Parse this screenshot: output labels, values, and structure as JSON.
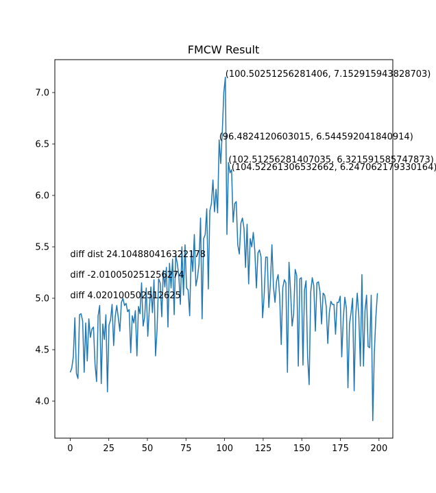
{
  "chart_data": {
    "type": "line",
    "title": "FMCW Result",
    "xlabel": "",
    "ylabel": "",
    "xlim": [
      -9.95,
      208.96
    ],
    "ylim": [
      3.64,
      7.32
    ],
    "grid": false,
    "series": [
      {
        "color": "#1f77b4",
        "x_start": 0,
        "x_step": 1.00502512562814,
        "y": [
          4.28,
          4.32,
          4.43,
          4.81,
          4.27,
          4.22,
          4.84,
          4.85,
          4.78,
          4.28,
          4.76,
          4.39,
          4.8,
          4.62,
          4.7,
          4.72,
          4.36,
          4.19,
          4.83,
          4.93,
          4.17,
          4.75,
          4.6,
          4.84,
          4.09,
          4.74,
          4.79,
          4.94,
          4.54,
          4.82,
          4.93,
          4.81,
          4.68,
          4.96,
          5.0,
          4.93,
          4.95,
          4.87,
          4.89,
          4.47,
          4.83,
          4.76,
          4.88,
          4.44,
          4.92,
          4.85,
          5.15,
          4.73,
          4.82,
          5.1,
          4.63,
          4.9,
          5.11,
          4.86,
          5.18,
          4.44,
          4.7,
          5.19,
          5.15,
          4.82,
          5.27,
          5.11,
          5.3,
          4.72,
          5.34,
          5.1,
          5.38,
          4.84,
          5.42,
          5.34,
          5.22,
          4.94,
          5.5,
          5.03,
          5.52,
          5.1,
          5.08,
          4.83,
          5.46,
          5.26,
          5.62,
          5.12,
          5.2,
          5.33,
          5.78,
          4.8,
          5.58,
          5.62,
          5.87,
          5.09,
          5.85,
          5.92,
          6.15,
          5.84,
          6.06,
          5.83,
          6.54,
          6.31,
          6.61,
          7.0,
          7.15,
          5.62,
          6.32,
          6.22,
          6.25,
          5.74,
          5.92,
          5.94,
          5.52,
          5.43,
          5.73,
          5.78,
          5.68,
          5.3,
          5.72,
          5.14,
          5.58,
          5.5,
          5.64,
          5.46,
          5.1,
          5.44,
          5.47,
          5.4,
          4.81,
          5.03,
          5.4,
          5.4,
          4.91,
          5.14,
          5.52,
          5.11,
          4.96,
          5.17,
          5.23,
          5.02,
          4.55,
          5.1,
          5.18,
          5.15,
          4.28,
          5.35,
          5.08,
          4.73,
          4.85,
          5.28,
          5.22,
          4.34,
          5.19,
          5.2,
          4.35,
          5.08,
          5.17,
          4.43,
          4.16,
          5.06,
          5.2,
          5.12,
          4.68,
          5.15,
          5.16,
          5.06,
          4.75,
          5.05,
          5.03,
          4.92,
          4.56,
          4.86,
          4.97,
          4.94,
          4.94,
          4.65,
          4.96,
          4.96,
          5.02,
          4.43,
          4.8,
          5.01,
          4.9,
          4.13,
          4.75,
          4.86,
          5.0,
          4.1,
          4.83,
          5.05,
          4.83,
          4.34,
          5.23,
          4.34,
          4.88,
          5.03,
          4.53,
          4.52,
          5.03,
          3.81,
          4.47,
          4.82,
          5.05
        ]
      }
    ],
    "annotations": [
      {
        "text": "(100.50251256281406, 7.152915943828703)",
        "x": 100.50251256281406,
        "y": 7.152915943828703
      },
      {
        "text": "(96.4824120603015, 6.544592041840914)",
        "x": 96.4824120603015,
        "y": 6.544592041840914
      },
      {
        "text": "(102.51256281407035, 6.321591585747873)",
        "x": 102.51256281407035,
        "y": 6.321591585747873
      },
      {
        "text": "(104.52261306532662, 6.247062179330164)",
        "x": 104.52261306532662,
        "y": 6.247062179330164
      },
      {
        "text": "diff dist 24.104880416322178",
        "x": 0,
        "y": 5.4
      },
      {
        "text": "diff -2.010050251256274",
        "x": 0,
        "y": 5.2
      },
      {
        "text": "diff 4.020100502512625",
        "x": 0,
        "y": 5.0
      }
    ],
    "x_ticks": [
      0,
      25,
      50,
      75,
      100,
      125,
      150,
      175,
      200
    ],
    "x_tick_labels": [
      "0",
      "25",
      "50",
      "75",
      "100",
      "125",
      "150",
      "175",
      "200"
    ],
    "y_ticks": [
      4.0,
      4.5,
      5.0,
      5.5,
      6.0,
      6.5,
      7.0
    ],
    "y_tick_labels": [
      "4.0",
      "4.5",
      "5.0",
      "5.5",
      "6.0",
      "6.5",
      "7.0"
    ]
  }
}
